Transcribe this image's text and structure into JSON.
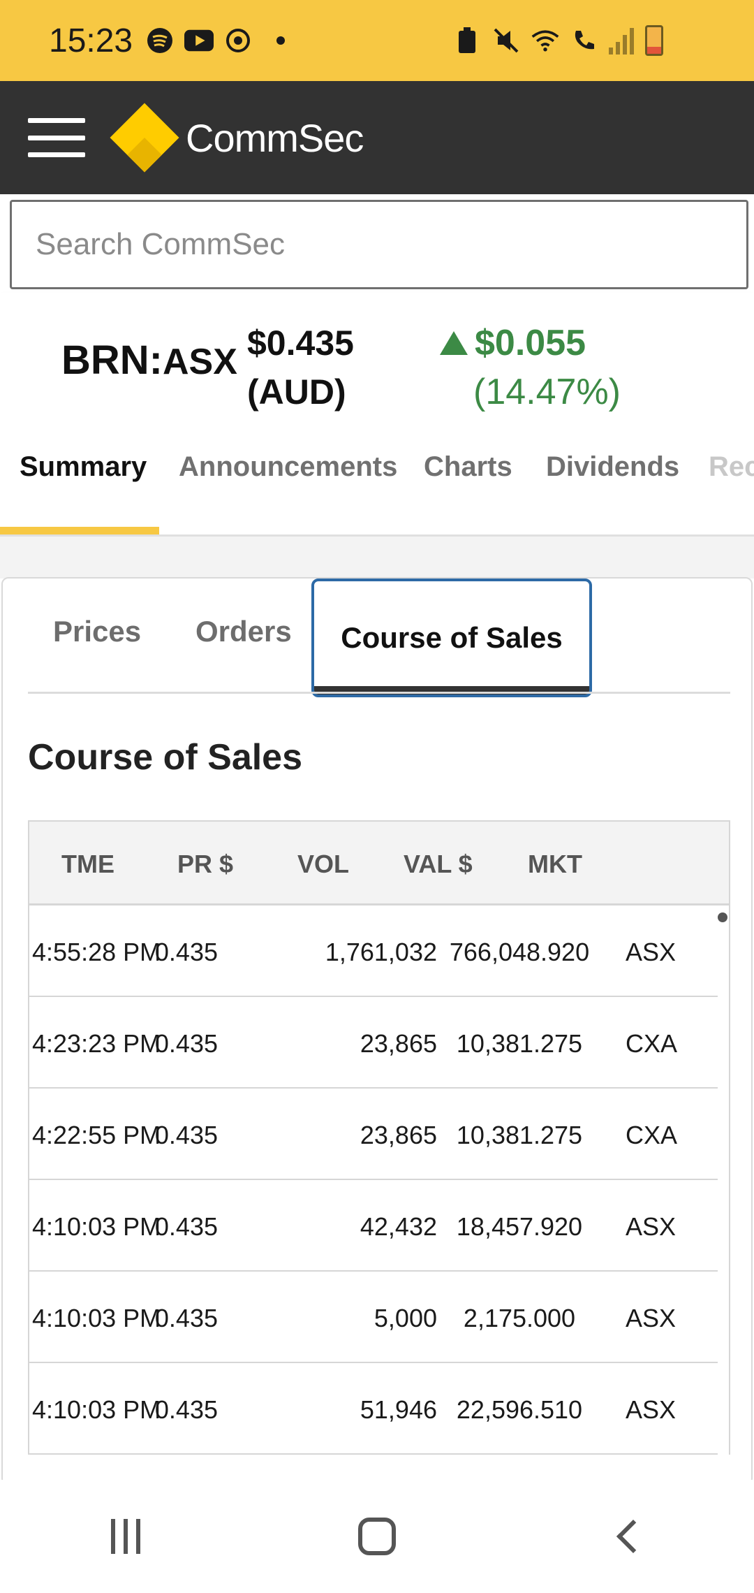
{
  "status_bar": {
    "time": "15:23",
    "left_icons": [
      "spotify-icon",
      "youtube-icon",
      "sync-icon"
    ],
    "right_icons": [
      "battery-saver-icon",
      "mute-icon",
      "wifi-icon",
      "wifi-call-icon",
      "signal-icon",
      "battery-icon"
    ]
  },
  "header": {
    "brand": "CommSec"
  },
  "search": {
    "placeholder": "Search CommSec"
  },
  "quote": {
    "code": "BRN",
    "sep": ":",
    "exchange": "ASX",
    "price": "$0.435",
    "currency": "(AUD)",
    "change_amount": "$0.055",
    "change_percent": "(14.47%)",
    "change_color": "#3c8a45"
  },
  "main_tabs": [
    {
      "label": "Summary"
    },
    {
      "label": "Announcements"
    },
    {
      "label": "Charts"
    },
    {
      "label": "Dividends"
    },
    {
      "label": "Rec"
    }
  ],
  "sub_tabs": [
    {
      "label": "Prices"
    },
    {
      "label": "Orders"
    },
    {
      "label": "Course of Sales"
    }
  ],
  "section_title": "Course of Sales",
  "table": {
    "headers": [
      "TME",
      "PR $",
      "VOL",
      "VAL $",
      "MKT"
    ],
    "rows": [
      [
        "4:55:28 PM",
        "0.435",
        "1,761,032",
        "766,048.920",
        "ASX"
      ],
      [
        "4:23:23 PM",
        "0.435",
        "23,865",
        "10,381.275",
        "CXA"
      ],
      [
        "4:22:55 PM",
        "0.435",
        "23,865",
        "10,381.275",
        "CXA"
      ],
      [
        "4:10:03 PM",
        "0.435",
        "42,432",
        "18,457.920",
        "ASX"
      ],
      [
        "4:10:03 PM",
        "0.435",
        "5,000",
        "2,175.000",
        "ASX"
      ],
      [
        "4:10:03 PM",
        "0.435",
        "51,946",
        "22,596.510",
        "ASX"
      ]
    ]
  },
  "colors": {
    "status_bar": "#f7c843",
    "header": "#323232",
    "accent": "#f7c843",
    "active_subtab_border": "#2d6aa6"
  }
}
